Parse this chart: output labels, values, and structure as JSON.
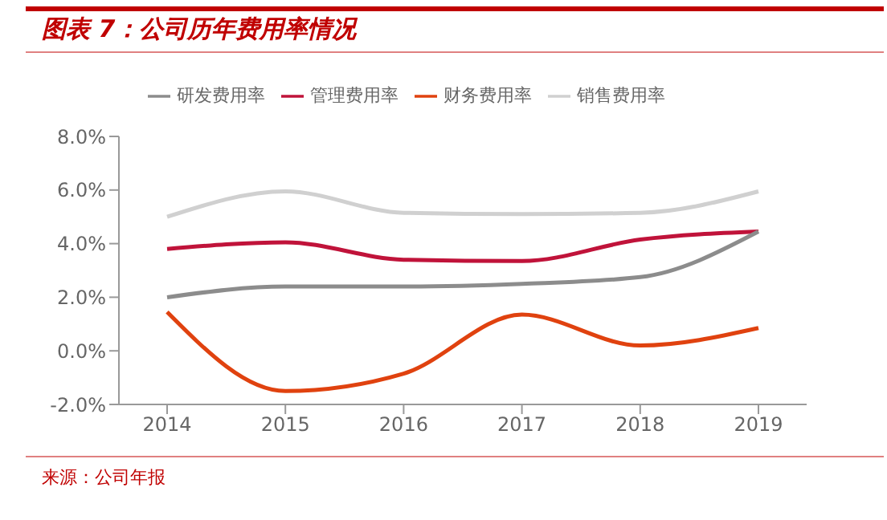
{
  "chart_data": {
    "type": "line",
    "title": "图表 7：公司历年费用率情况",
    "categories": [
      "2014",
      "2015",
      "2016",
      "2017",
      "2018",
      "2019"
    ],
    "series": [
      {
        "name": "管理费用率",
        "color": "#c0133a",
        "values": [
          3.8,
          4.05,
          3.4,
          3.35,
          4.15,
          4.45
        ]
      },
      {
        "name": "销售费用率",
        "color": "#d0d0d0",
        "values": [
          5.0,
          5.95,
          5.15,
          5.1,
          5.15,
          5.95
        ]
      },
      {
        "name": "财务费用率",
        "color": "#e0420f",
        "values": [
          1.45,
          -1.5,
          -0.85,
          1.35,
          0.2,
          0.85
        ]
      },
      {
        "name": "研发费用率",
        "color": "#8c8c8c",
        "values": [
          2.0,
          2.4,
          2.4,
          2.5,
          2.75,
          4.45
        ]
      }
    ],
    "ylim": [
      -2,
      8
    ],
    "yticks": [
      {
        "value": -2,
        "label": "-2.0%"
      },
      {
        "value": 0,
        "label": "0.0%"
      },
      {
        "value": 2,
        "label": "2.0%"
      },
      {
        "value": 4,
        "label": "4.0%"
      },
      {
        "value": 6,
        "label": "6.0%"
      },
      {
        "value": 8,
        "label": "8.0%"
      }
    ],
    "grid": false,
    "legend": "top",
    "marker": "none",
    "line_style": "solid",
    "annotations": [
      "来源：公司年报"
    ]
  }
}
